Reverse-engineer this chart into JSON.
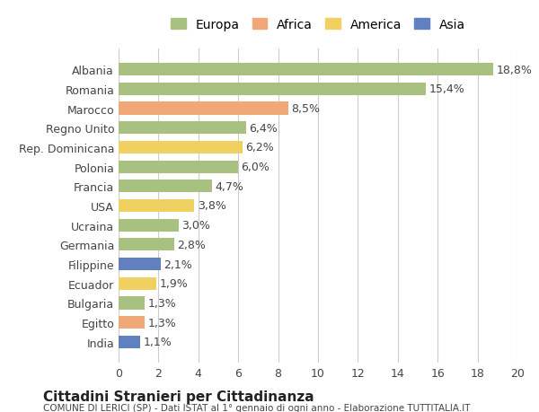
{
  "categories": [
    "Albania",
    "Romania",
    "Marocco",
    "Regno Unito",
    "Rep. Dominicana",
    "Polonia",
    "Francia",
    "USA",
    "Ucraina",
    "Germania",
    "Filippine",
    "Ecuador",
    "Bulgaria",
    "Egitto",
    "India"
  ],
  "values": [
    18.8,
    15.4,
    8.5,
    6.4,
    6.2,
    6.0,
    4.7,
    3.8,
    3.0,
    2.8,
    2.1,
    1.9,
    1.3,
    1.3,
    1.1
  ],
  "labels": [
    "18,8%",
    "15,4%",
    "8,5%",
    "6,4%",
    "6,2%",
    "6,0%",
    "4,7%",
    "3,8%",
    "3,0%",
    "2,8%",
    "2,1%",
    "1,9%",
    "1,3%",
    "1,3%",
    "1,1%"
  ],
  "colors": [
    "#a8c080",
    "#a8c080",
    "#f0a878",
    "#a8c080",
    "#f0d060",
    "#a8c080",
    "#a8c080",
    "#f0d060",
    "#a8c080",
    "#a8c080",
    "#6080c0",
    "#f0d060",
    "#a8c080",
    "#f0a878",
    "#6080c0"
  ],
  "continent_colors": {
    "Europa": "#a8c080",
    "Africa": "#f0a878",
    "America": "#f0d060",
    "Asia": "#6080c0"
  },
  "legend_labels": [
    "Europa",
    "Africa",
    "America",
    "Asia"
  ],
  "xlim": [
    0,
    20
  ],
  "xticks": [
    0,
    2,
    4,
    6,
    8,
    10,
    12,
    14,
    16,
    18,
    20
  ],
  "title": "Cittadini Stranieri per Cittadinanza",
  "subtitle": "COMUNE DI LERICI (SP) - Dati ISTAT al 1° gennaio di ogni anno - Elaborazione TUTTITALIA.IT",
  "background_color": "#ffffff",
  "bar_height": 0.65,
  "grid_color": "#cccccc",
  "label_fontsize": 9,
  "tick_fontsize": 9
}
